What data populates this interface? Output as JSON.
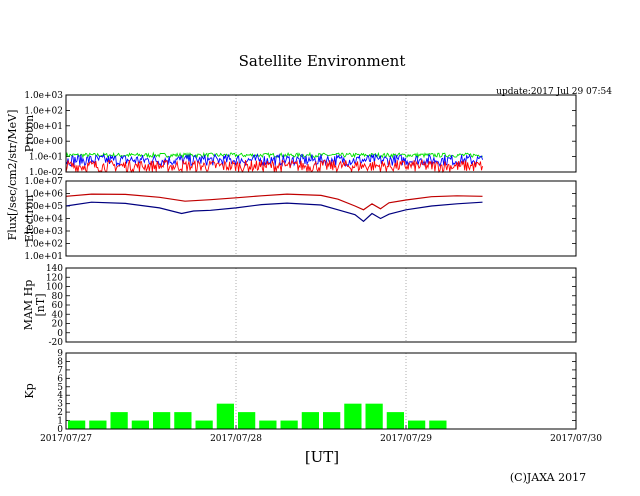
{
  "page": {
    "title": "Satellite Environment",
    "update": "update:2017 Jul 29 07:54",
    "copyright": "(C)JAXA 2017",
    "flux_label": "Flux[/sec/cm2/str/MeV]",
    "x_axis_label": "[UT]"
  },
  "chart_data": [
    {
      "type": "line",
      "panel": "proton",
      "ylabel": "Proton",
      "yscale": "log",
      "ylim": [
        0.01,
        1000
      ],
      "yticks": [
        "1.0e-02",
        "1.0e-01",
        "1.0e+00",
        "1.0e+01",
        "1.0e+02",
        "1.0e+03"
      ],
      "x_range": [
        "2017/07/27",
        "2017/07/30"
      ],
      "x_end_data_days": 2.45,
      "grid": true,
      "series": [
        {
          "color": "#00e000",
          "band": [
            0.09,
            0.17
          ]
        },
        {
          "color": "#0000ff",
          "band": [
            0.025,
            0.14
          ]
        },
        {
          "color": "#ff0000",
          "band": [
            0.01,
            0.06
          ]
        }
      ]
    },
    {
      "type": "line",
      "panel": "electron",
      "ylabel": "Electron",
      "yscale": "log",
      "ylim": [
        10,
        10000000
      ],
      "yticks": [
        "1.0e+01",
        "1.0e+02",
        "1.0e+03",
        "1.0e+04",
        "1.0e+05",
        "1.0e+06",
        "1.0e+07"
      ],
      "grid": true,
      "series": [
        {
          "color": "#c00000",
          "points": [
            [
              0,
              600000.0
            ],
            [
              0.15,
              900000.0
            ],
            [
              0.35,
              850000.0
            ],
            [
              0.55,
              500000.0
            ],
            [
              0.7,
              240000.0
            ],
            [
              0.85,
              320000.0
            ],
            [
              1.0,
              450000.0
            ],
            [
              1.15,
              650000.0
            ],
            [
              1.3,
              900000.0
            ],
            [
              1.5,
              700000.0
            ],
            [
              1.6,
              350000.0
            ],
            [
              1.7,
              100000.0
            ],
            [
              1.75,
              50000.0
            ],
            [
              1.8,
              150000.0
            ],
            [
              1.85,
              60000.0
            ],
            [
              1.9,
              180000.0
            ],
            [
              2.0,
              300000.0
            ],
            [
              2.15,
              550000.0
            ],
            [
              2.3,
              650000.0
            ],
            [
              2.45,
              600000.0
            ]
          ]
        },
        {
          "color": "#000080",
          "points": [
            [
              0,
              100000.0
            ],
            [
              0.15,
              200000.0
            ],
            [
              0.35,
              160000.0
            ],
            [
              0.55,
              70000.0
            ],
            [
              0.68,
              25000.0
            ],
            [
              0.75,
              40000.0
            ],
            [
              0.85,
              45000.0
            ],
            [
              1.0,
              70000.0
            ],
            [
              1.15,
              130000.0
            ],
            [
              1.3,
              170000.0
            ],
            [
              1.5,
              120000.0
            ],
            [
              1.6,
              50000.0
            ],
            [
              1.7,
              20000.0
            ],
            [
              1.75,
              6000.0
            ],
            [
              1.8,
              25000.0
            ],
            [
              1.85,
              10000.0
            ],
            [
              1.9,
              22000.0
            ],
            [
              2.0,
              50000.0
            ],
            [
              2.15,
              100000.0
            ],
            [
              2.3,
              150000.0
            ],
            [
              2.45,
              200000.0
            ]
          ]
        }
      ]
    },
    {
      "type": "line",
      "panel": "mam_hp",
      "ylabel": "MAM Hp",
      "ylabel2": "[nT]",
      "ylim": [
        -20,
        140
      ],
      "yticks": [
        "-20",
        "0",
        "20",
        "40",
        "60",
        "80",
        "100",
        "120",
        "140"
      ],
      "grid": true,
      "series": []
    },
    {
      "type": "bar",
      "panel": "kp",
      "ylabel": "Kp",
      "ylim": [
        0,
        9
      ],
      "yticks": [
        "0",
        "1",
        "2",
        "3",
        "4",
        "5",
        "6",
        "7",
        "8",
        "9"
      ],
      "grid": true,
      "bar_width_hours": 3,
      "color": "#00ff00",
      "values": [
        1,
        1,
        2,
        1,
        2,
        2,
        1,
        3,
        2,
        1,
        1,
        2,
        2,
        3,
        3,
        2,
        1,
        1
      ]
    }
  ],
  "x_axis": {
    "ticks": [
      "2017/07/27",
      "2017/07/28",
      "2017/07/29",
      "2017/07/30"
    ]
  }
}
